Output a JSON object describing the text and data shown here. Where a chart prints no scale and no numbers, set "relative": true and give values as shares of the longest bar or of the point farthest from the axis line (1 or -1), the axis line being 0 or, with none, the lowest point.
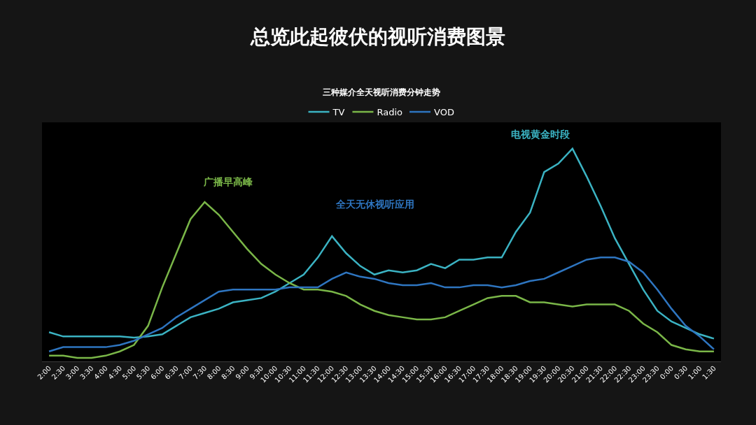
{
  "chart_data": {
    "type": "line",
    "title": "总览此起彼伏的视听消费图景",
    "subtitle": "三种媒介全天视听消费分钟走势",
    "relative": true,
    "grid": false,
    "legend": "top",
    "marker": "none",
    "line_style": "solid",
    "categories": [
      "2:00",
      "2:30",
      "3:00",
      "3:30",
      "4:00",
      "4:30",
      "5:00",
      "5:30",
      "6:00",
      "6:30",
      "7:00",
      "7:30",
      "8:00",
      "8:30",
      "9:00",
      "9:30",
      "10:00",
      "10:30",
      "11:00",
      "11:30",
      "12:00",
      "12:30",
      "13:00",
      "13:30",
      "14:00",
      "14:30",
      "15:00",
      "15:30",
      "16:00",
      "16:30",
      "17:00",
      "17:30",
      "18:00",
      "18:30",
      "19:00",
      "19:30",
      "20:00",
      "20:30",
      "21:00",
      "21:30",
      "22:00",
      "22:30",
      "23:00",
      "23:30",
      "0:00",
      "0:30",
      "1:00",
      "1:30"
    ],
    "series": [
      {
        "name": "TV",
        "color": "#3bb3c3",
        "values": [
          0.14,
          0.12,
          0.12,
          0.12,
          0.12,
          0.12,
          0.115,
          0.12,
          0.13,
          0.17,
          0.21,
          0.23,
          0.25,
          0.28,
          0.29,
          0.3,
          0.33,
          0.37,
          0.41,
          0.49,
          0.59,
          0.51,
          0.45,
          0.41,
          0.43,
          0.42,
          0.43,
          0.46,
          0.44,
          0.48,
          0.48,
          0.49,
          0.49,
          0.61,
          0.7,
          0.89,
          0.93,
          1,
          0.87,
          0.73,
          0.58,
          0.46,
          0.34,
          0.24,
          0.19,
          0.16,
          0.13,
          0.11
        ]
      },
      {
        "name": "Radio",
        "color": "#7ab648",
        "values": [
          0.03,
          0.03,
          0.02,
          0.02,
          0.03,
          0.05,
          0.08,
          0.17,
          0.35,
          0.51,
          0.67,
          0.75,
          0.69,
          0.61,
          0.53,
          0.46,
          0.41,
          0.37,
          0.34,
          0.34,
          0.33,
          0.31,
          0.27,
          0.24,
          0.22,
          0.21,
          0.2,
          0.2,
          0.21,
          0.24,
          0.27,
          0.3,
          0.31,
          0.31,
          0.28,
          0.28,
          0.27,
          0.26,
          0.27,
          0.27,
          0.27,
          0.24,
          0.18,
          0.14,
          0.08,
          0.06,
          0.05,
          0.05
        ]
      },
      {
        "name": "VOD",
        "color": "#2e75c0",
        "values": [
          0.05,
          0.07,
          0.07,
          0.07,
          0.07,
          0.08,
          0.1,
          0.13,
          0.16,
          0.21,
          0.25,
          0.29,
          0.33,
          0.34,
          0.34,
          0.34,
          0.34,
          0.35,
          0.35,
          0.35,
          0.39,
          0.42,
          0.4,
          0.39,
          0.37,
          0.36,
          0.36,
          0.37,
          0.35,
          0.35,
          0.36,
          0.36,
          0.35,
          0.36,
          0.38,
          0.39,
          0.42,
          0.45,
          0.48,
          0.49,
          0.49,
          0.47,
          0.42,
          0.34,
          0.25,
          0.17,
          0.12,
          0.06
        ]
      }
    ],
    "annotations": [
      "广播早高峰",
      "全天无休视听应用",
      "电视黄金时段"
    ]
  }
}
